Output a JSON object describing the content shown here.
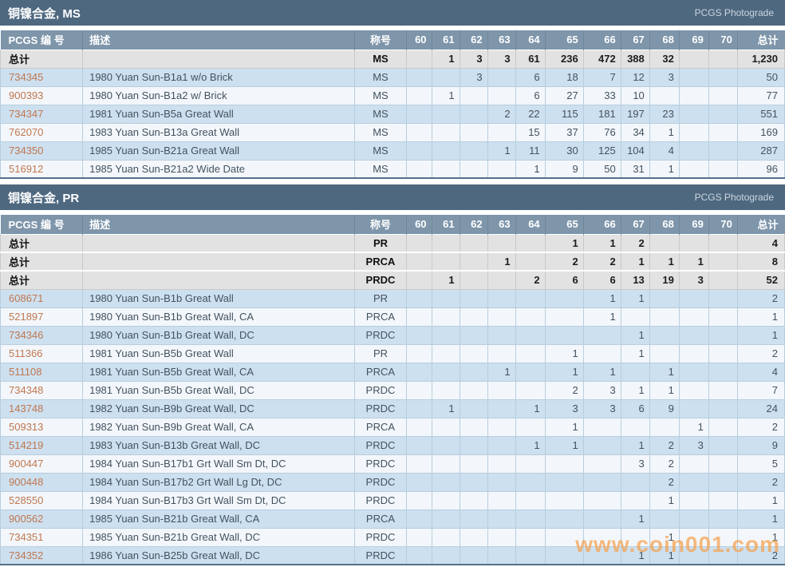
{
  "watermark": "www.coin001.com",
  "colors": {
    "titlebar_bg": "#4e6880",
    "header_bg": "#7e95aa",
    "totals_bg": "#e2e2e2",
    "row_blue": "#cde0f0",
    "row_light": "#f3f7fb",
    "link": "#c0774f",
    "watermark": "#f6a14c"
  },
  "labels": {
    "pcgs_number": "PCGS 编 号",
    "description": "描述",
    "designation": "称号",
    "total": "总计",
    "totals_row": "总计",
    "photograde": "PCGS Photograde"
  },
  "grade_columns": [
    "60",
    "61",
    "62",
    "63",
    "64",
    "65",
    "66",
    "67",
    "68",
    "69",
    "70"
  ],
  "sections": [
    {
      "title": "铜镍合金, MS",
      "totals": [
        {
          "designation": "MS",
          "grades": {
            "61": "1",
            "62": "3",
            "63": "3",
            "64": "61",
            "65": "236",
            "66": "472",
            "67": "388",
            "68": "32"
          },
          "total": "1,230"
        }
      ],
      "rows": [
        {
          "number": "734345",
          "description": "1980 Yuan Sun-B1a1 w/o Brick",
          "designation": "MS",
          "grades": {
            "62": "3",
            "64": "6",
            "65": "18",
            "66": "7",
            "67": "12",
            "68": "3"
          },
          "total": "50"
        },
        {
          "number": "900393",
          "description": "1980 Yuan Sun-B1a2 w/ Brick",
          "designation": "MS",
          "grades": {
            "61": "1",
            "64": "6",
            "65": "27",
            "66": "33",
            "67": "10"
          },
          "total": "77"
        },
        {
          "number": "734347",
          "description": "1981 Yuan Sun-B5a Great Wall",
          "designation": "MS",
          "grades": {
            "63": "2",
            "64": "22",
            "65": "115",
            "66": "181",
            "67": "197",
            "68": "23"
          },
          "total": "551"
        },
        {
          "number": "762070",
          "description": "1983 Yuan Sun-B13a Great Wall",
          "designation": "MS",
          "grades": {
            "64": "15",
            "65": "37",
            "66": "76",
            "67": "34",
            "68": "1"
          },
          "total": "169"
        },
        {
          "number": "734350",
          "description": "1985 Yuan Sun-B21a Great Wall",
          "designation": "MS",
          "grades": {
            "63": "1",
            "64": "11",
            "65": "30",
            "66": "125",
            "67": "104",
            "68": "4"
          },
          "total": "287"
        },
        {
          "number": "516912",
          "description": "1985 Yuan Sun-B21a2 Wide Date",
          "designation": "MS",
          "grades": {
            "64": "1",
            "65": "9",
            "66": "50",
            "67": "31",
            "68": "1"
          },
          "total": "96"
        }
      ]
    },
    {
      "title": "铜镍合金, PR",
      "totals": [
        {
          "designation": "PR",
          "grades": {
            "65": "1",
            "66": "1",
            "67": "2"
          },
          "total": "4"
        },
        {
          "designation": "PRCA",
          "grades": {
            "63": "1",
            "65": "2",
            "66": "2",
            "67": "1",
            "68": "1",
            "69": "1"
          },
          "total": "8"
        },
        {
          "designation": "PRDC",
          "grades": {
            "61": "1",
            "64": "2",
            "65": "6",
            "66": "6",
            "67": "13",
            "68": "19",
            "69": "3"
          },
          "total": "52"
        }
      ],
      "rows": [
        {
          "number": "608671",
          "description": "1980 Yuan Sun-B1b Great Wall",
          "designation": "PR",
          "grades": {
            "66": "1",
            "67": "1"
          },
          "total": "2"
        },
        {
          "number": "521897",
          "description": "1980 Yuan Sun-B1b Great Wall, CA",
          "designation": "PRCA",
          "grades": {
            "66": "1"
          },
          "total": "1"
        },
        {
          "number": "734346",
          "description": "1980 Yuan Sun-B1b Great Wall, DC",
          "designation": "PRDC",
          "grades": {
            "67": "1"
          },
          "total": "1"
        },
        {
          "number": "511366",
          "description": "1981 Yuan Sun-B5b Great Wall",
          "designation": "PR",
          "grades": {
            "65": "1",
            "67": "1"
          },
          "total": "2"
        },
        {
          "number": "511108",
          "description": "1981 Yuan Sun-B5b Great Wall, CA",
          "designation": "PRCA",
          "grades": {
            "63": "1",
            "65": "1",
            "66": "1",
            "68": "1"
          },
          "total": "4"
        },
        {
          "number": "734348",
          "description": "1981 Yuan Sun-B5b Great Wall, DC",
          "designation": "PRDC",
          "grades": {
            "65": "2",
            "66": "3",
            "67": "1",
            "68": "1"
          },
          "total": "7"
        },
        {
          "number": "143748",
          "description": "1982 Yuan Sun-B9b Great Wall, DC",
          "designation": "PRDC",
          "grades": {
            "61": "1",
            "64": "1",
            "65": "3",
            "66": "3",
            "67": "6",
            "68": "9"
          },
          "total": "24"
        },
        {
          "number": "509313",
          "description": "1982 Yuan Sun-B9b Great Wall, CA",
          "designation": "PRCA",
          "grades": {
            "65": "1",
            "69": "1"
          },
          "total": "2"
        },
        {
          "number": "514219",
          "description": "1983 Yuan Sun-B13b Great Wall, DC",
          "designation": "PRDC",
          "grades": {
            "64": "1",
            "65": "1",
            "67": "1",
            "68": "2",
            "69": "3"
          },
          "total": "9"
        },
        {
          "number": "900447",
          "description": "1984 Yuan Sun-B17b1 Grt Wall Sm Dt, DC",
          "designation": "PRDC",
          "grades": {
            "67": "3",
            "68": "2"
          },
          "total": "5"
        },
        {
          "number": "900448",
          "description": "1984 Yuan Sun-B17b2 Grt Wall Lg Dt, DC",
          "designation": "PRDC",
          "grades": {
            "68": "2"
          },
          "total": "2"
        },
        {
          "number": "528550",
          "description": "1984 Yuan Sun-B17b3 Grt Wall Sm Dt, DC",
          "designation": "PRDC",
          "grades": {
            "68": "1"
          },
          "total": "1"
        },
        {
          "number": "900562",
          "description": "1985 Yuan Sun-B21b Great Wall, CA",
          "designation": "PRCA",
          "grades": {
            "67": "1"
          },
          "total": "1"
        },
        {
          "number": "734351",
          "description": "1985 Yuan Sun-B21b Great Wall, DC",
          "designation": "PRDC",
          "grades": {
            "68": "1"
          },
          "total": "1"
        },
        {
          "number": "734352",
          "description": "1986 Yuan Sun-B25b Great Wall, DC",
          "designation": "PRDC",
          "grades": {
            "67": "1",
            "68": "1"
          },
          "total": "2"
        }
      ]
    }
  ]
}
